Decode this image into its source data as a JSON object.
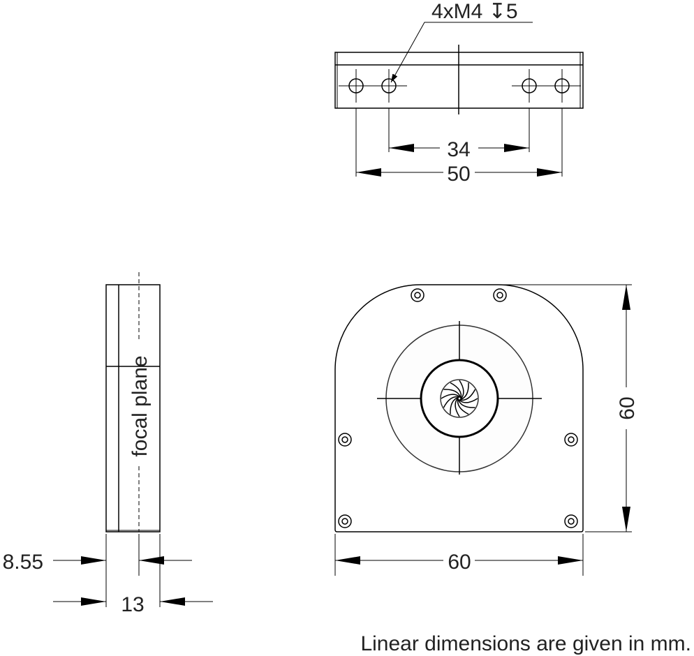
{
  "top_view": {
    "callout": "4xM4 ↧5",
    "dim_inner": "34",
    "dim_outer": "50"
  },
  "side_view": {
    "label": "focal plane",
    "dim_focal": "8.55",
    "dim_thickness": "13"
  },
  "front_view": {
    "dim_width": "60",
    "dim_height": "60"
  },
  "note": "Linear dimensions are given in mm."
}
